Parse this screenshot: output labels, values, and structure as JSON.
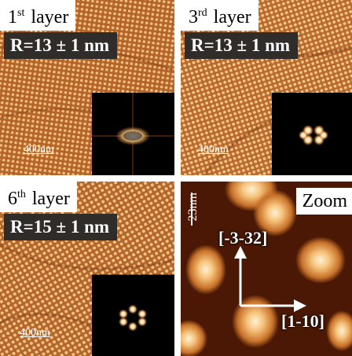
{
  "panels": [
    {
      "layer_number": "1",
      "layer_suffix": "st",
      "layer_rest": "layer",
      "radius": "R=13 ± 1 nm",
      "scale": "400nm"
    },
    {
      "layer_number": "3",
      "layer_suffix": "rd",
      "layer_rest": "layer",
      "radius": "R=13 ± 1 nm",
      "scale": "400nm"
    },
    {
      "layer_number": "6",
      "layer_suffix": "th",
      "layer_rest": "layer",
      "radius": "R=15 ± 1 nm",
      "scale": "400nm"
    }
  ],
  "zoom": {
    "label": "Zoom",
    "scale": "23nm",
    "direction_up": "[-3-32]",
    "direction_right": "[1-10]"
  },
  "colors": {
    "afm_light": "#f6c88a",
    "afm_mid": "#c8722a",
    "afm_dark": "#5a1e06",
    "badge": "#2f2c2a"
  }
}
